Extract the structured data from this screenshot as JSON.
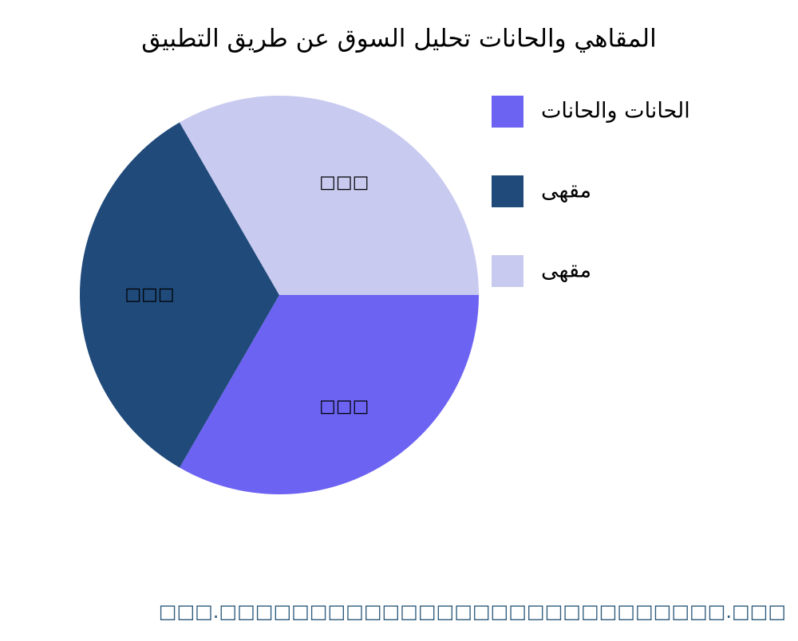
{
  "chart_data": {
    "type": "pie",
    "title": "المقاهي والحانات تحليل السوق عن طريق التطبيق",
    "categories": [
      "الحانات والحانات",
      "مقهى",
      "مقهى"
    ],
    "values": [
      33.3,
      33.3,
      33.3
    ],
    "value_labels": [
      "□□□",
      "□□□",
      "□□□"
    ],
    "colors": [
      "#6c63f2",
      "#1f4a7a",
      "#c8caf0"
    ],
    "direction": "clockwise",
    "legend": "right",
    "footer": "□□□.□□□□□□□□□□□□□□□□□□□□□□□□□□□□.□□□"
  }
}
